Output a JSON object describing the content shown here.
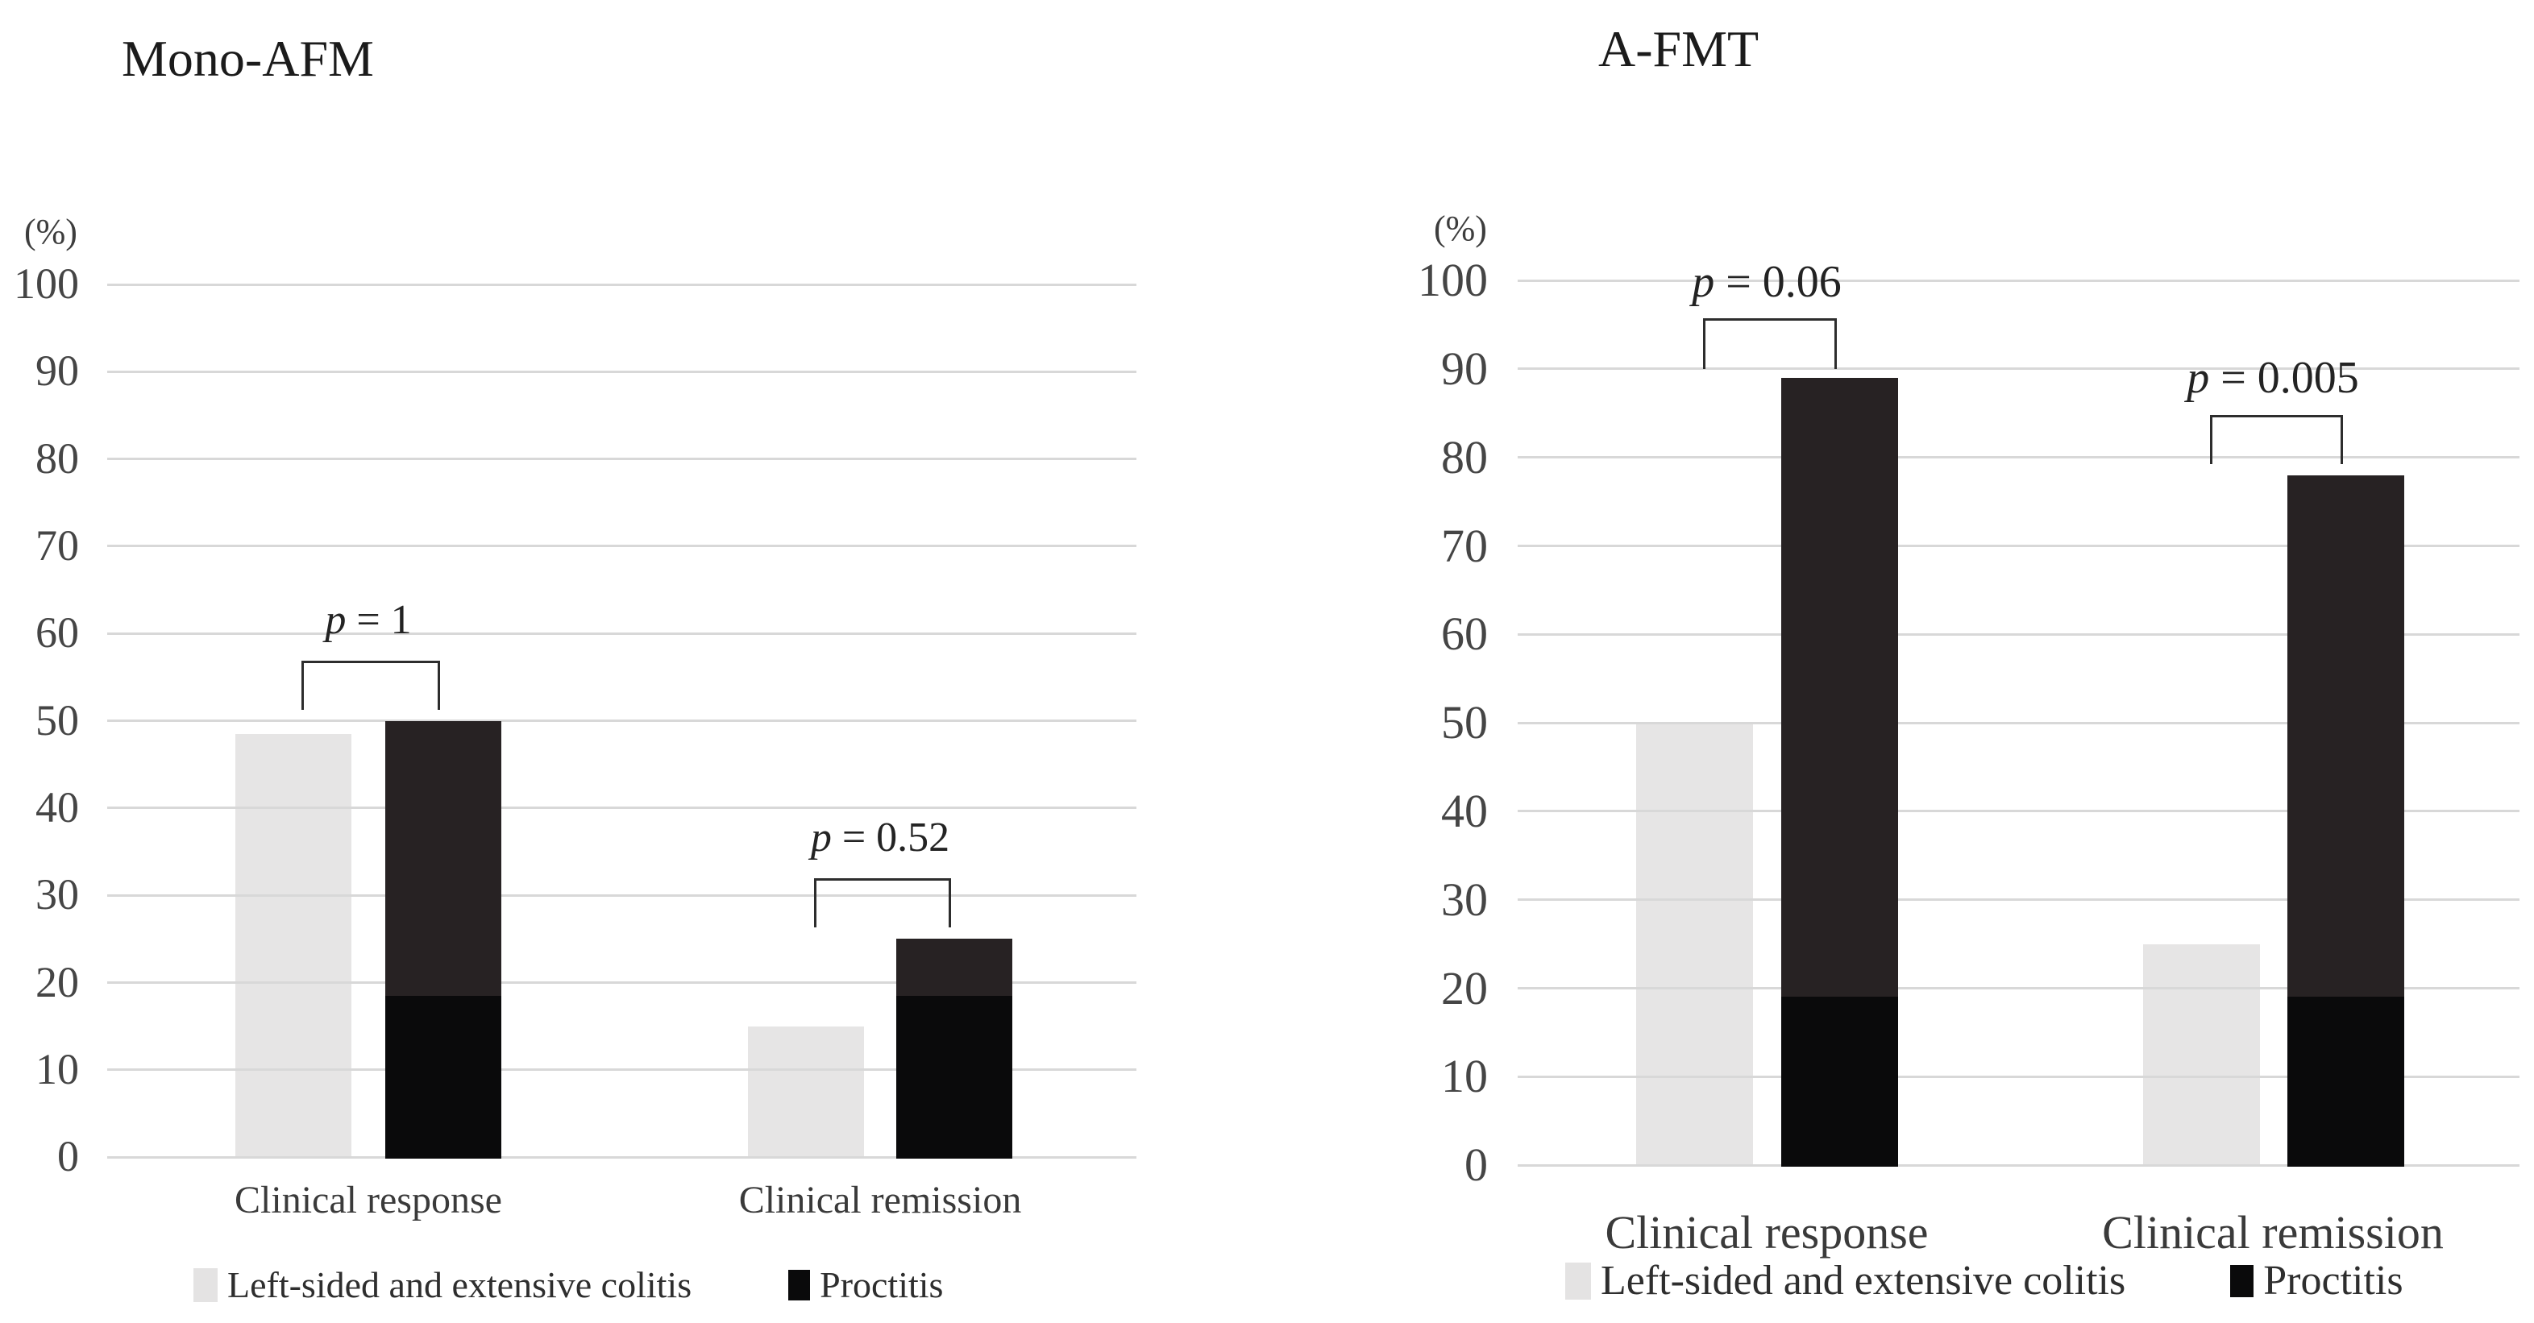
{
  "colors": {
    "background": "#ffffff",
    "gridline": "#d8d8d8",
    "bar_gray": "#e6e5e5",
    "bar_dark_charcoal": "#272223",
    "bar_black": "#0a0a0b",
    "bracket": "#2d2d2d",
    "axis_text": "#454545",
    "title_text": "#1b1b1b"
  },
  "legend": {
    "items": [
      {
        "label": "Left-sided and extensive colitis",
        "swatch_color": "#e4e3e3"
      },
      {
        "label": "Proctitis",
        "swatch_color": "#0a0a0b"
      }
    ]
  },
  "chart_data": [
    {
      "type": "bar",
      "title": "Mono-AFM",
      "y_axis_unit_label": "(%)",
      "ylim": [
        0,
        100
      ],
      "y_ticks": [
        0,
        10,
        20,
        30,
        40,
        50,
        60,
        70,
        80,
        90,
        100
      ],
      "grid": true,
      "legend_position": "bottom",
      "categories": [
        "Clinical response",
        "Clinical remission"
      ],
      "series": [
        {
          "name": "Left-sided and extensive colitis",
          "values": [
            48.5,
            15
          ]
        },
        {
          "name": "Proctitis",
          "values": [
            50,
            25
          ],
          "black_lower_segment_up_to": 18.5
        }
      ],
      "annotations": [
        {
          "text": "p = 1",
          "category": "Clinical response"
        },
        {
          "text": "p = 0.52",
          "category": "Clinical remission"
        }
      ]
    },
    {
      "type": "bar",
      "title": "A-FMT",
      "y_axis_unit_label": "(%)",
      "ylim": [
        0,
        100
      ],
      "y_ticks": [
        0,
        10,
        20,
        30,
        40,
        50,
        60,
        70,
        80,
        90,
        100
      ],
      "grid": true,
      "legend_position": "bottom",
      "categories": [
        "Clinical response",
        "Clinical remission"
      ],
      "series": [
        {
          "name": "Left-sided and extensive colitis",
          "values": [
            50,
            25
          ]
        },
        {
          "name": "Proctitis",
          "values": [
            89,
            78
          ],
          "black_lower_segment_up_to": 19
        }
      ],
      "annotations": [
        {
          "text": "p = 0.06",
          "category": "Clinical response"
        },
        {
          "text": "p = 0.005",
          "category": "Clinical remission"
        }
      ]
    }
  ]
}
